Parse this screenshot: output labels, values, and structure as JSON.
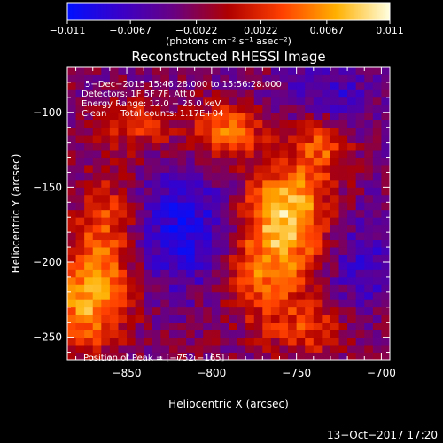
{
  "chart_data": {
    "type": "heatmap",
    "title": "Reconstructed RHESSI Image",
    "xlabel": "Heliocentric X (arcsec)",
    "ylabel": "Heliocentric Y (arcsec)",
    "xlim": [
      -885,
      -695
    ],
    "ylim": [
      -265,
      -70
    ],
    "x_ticks": [
      -850,
      -800,
      -750,
      -700
    ],
    "x_tick_labels": [
      "−850",
      "−800",
      "−750",
      "−700"
    ],
    "y_ticks": [
      -100,
      -150,
      -200,
      -250
    ],
    "y_tick_labels": [
      "−100",
      "−150",
      "−200",
      "−250"
    ],
    "colorbar": {
      "range": [
        -0.011,
        0.011
      ],
      "ticks": [
        -0.011,
        -0.0067,
        -0.0022,
        0.0022,
        0.0067,
        0.011
      ],
      "tick_labels": [
        "−0.011",
        "−0.0067",
        "−0.0022",
        "0.0022",
        "0.0067",
        "0.011"
      ],
      "units_label": "(photons cm⁻² s⁻¹ asec⁻²)",
      "colors": [
        "#0010ff",
        "#3a00c8",
        "#6a0080",
        "#b00000",
        "#ff4000",
        "#ffb000",
        "#ffffe0"
      ]
    },
    "annotations": [
      "5−Dec−2015 15:46:28.000 to 15:56:28.000",
      "Detectors: 1F 5F 7F, Att 0",
      "Energy Range: 12.0 − 25.0 keV",
      "Clean     Total counts: 1.17E+04"
    ],
    "peak_label": "Position of Peak = [−752,−165]",
    "peak": [
      -752,
      -165
    ],
    "sources": [
      {
        "x": -756,
        "y": -165,
        "amp": 0.0105,
        "sx": 18,
        "sy": 22
      },
      {
        "x": -790,
        "y": -112,
        "amp": 0.008,
        "sx": 14,
        "sy": 12
      },
      {
        "x": -735,
        "y": -120,
        "amp": 0.0068,
        "sx": 12,
        "sy": 16
      },
      {
        "x": -768,
        "y": -208,
        "amp": 0.0075,
        "sx": 20,
        "sy": 22
      },
      {
        "x": -872,
        "y": -225,
        "amp": 0.01,
        "sx": 16,
        "sy": 22
      },
      {
        "x": -862,
        "y": -175,
        "amp": 0.006,
        "sx": 12,
        "sy": 24
      },
      {
        "x": -842,
        "y": -108,
        "amp": 0.005,
        "sx": 16,
        "sy": 12
      },
      {
        "x": -740,
        "y": -245,
        "amp": 0.005,
        "sx": 18,
        "sy": 12
      },
      {
        "x": -815,
        "y": -180,
        "amp": -0.007,
        "sx": 20,
        "sy": 28
      },
      {
        "x": -730,
        "y": -90,
        "amp": -0.005,
        "sx": 18,
        "sy": 16
      },
      {
        "x": -712,
        "y": -200,
        "amp": -0.0045,
        "sx": 14,
        "sy": 26
      }
    ]
  },
  "footer": {
    "timestamp": "13−Oct−2017 17:20"
  }
}
